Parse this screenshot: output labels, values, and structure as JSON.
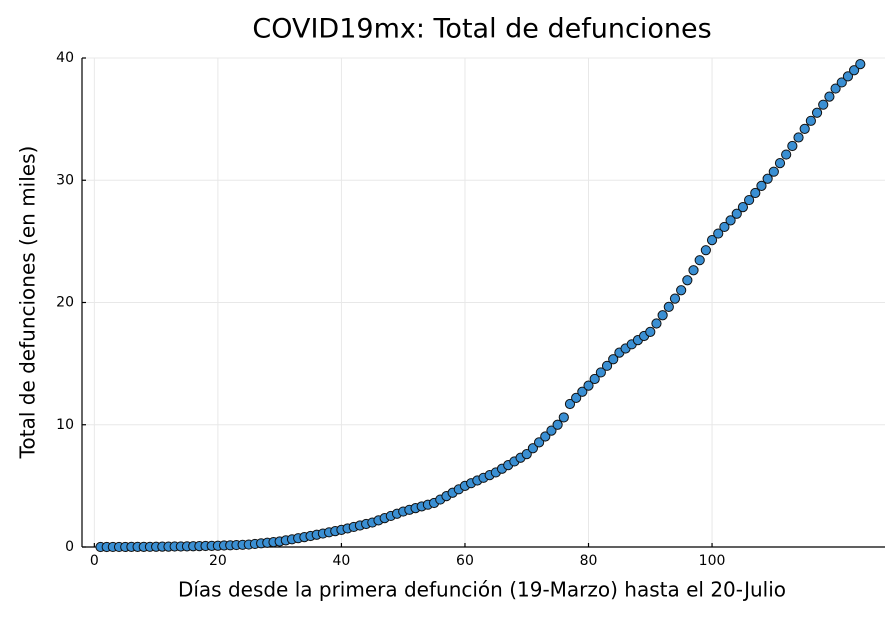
{
  "chart_data": {
    "type": "scatter",
    "title": "COVID19mx: Total de defunciones",
    "xlabel": "Días desde la primera defunción (19-Marzo) hasta el 20-Julio",
    "ylabel": "Total de defunciones (en miles)",
    "color": "#3a8fd3",
    "grid": true,
    "xlim": [
      -2,
      128
    ],
    "ylim": [
      0,
      40
    ],
    "xticks": [
      0,
      20,
      40,
      60,
      80,
      100
    ],
    "yticks": [
      0,
      10,
      20,
      30,
      40
    ],
    "x": [
      1,
      2,
      3,
      4,
      5,
      6,
      7,
      8,
      9,
      10,
      11,
      12,
      13,
      14,
      15,
      16,
      17,
      18,
      19,
      20,
      21,
      22,
      23,
      24,
      25,
      26,
      27,
      28,
      29,
      30,
      31,
      32,
      33,
      34,
      35,
      36,
      37,
      38,
      39,
      40,
      41,
      42,
      43,
      44,
      45,
      46,
      47,
      48,
      49,
      50,
      51,
      52,
      53,
      54,
      55,
      56,
      57,
      58,
      59,
      60,
      61,
      62,
      63,
      64,
      65,
      66,
      67,
      68,
      69,
      70,
      71,
      72,
      73,
      74,
      75,
      76,
      77,
      78,
      79,
      80,
      81,
      82,
      83,
      84,
      85,
      86,
      87,
      88,
      89,
      90,
      91,
      92,
      93,
      94,
      95,
      96,
      97,
      98,
      99,
      100,
      101,
      102,
      103,
      104,
      105,
      106,
      107,
      108,
      109,
      110,
      111,
      112,
      113,
      114,
      115,
      116,
      117,
      118,
      119,
      120,
      121,
      122,
      123,
      124
    ],
    "values": [
      0.002,
      0.003,
      0.004,
      0.004,
      0.005,
      0.008,
      0.01,
      0.013,
      0.016,
      0.02,
      0.03,
      0.03,
      0.04,
      0.04,
      0.05,
      0.06,
      0.07,
      0.08,
      0.09,
      0.1,
      0.12,
      0.14,
      0.16,
      0.18,
      0.2,
      0.25,
      0.3,
      0.35,
      0.4,
      0.45,
      0.54,
      0.63,
      0.72,
      0.81,
      0.9,
      1.0,
      1.1,
      1.2,
      1.3,
      1.4,
      1.52,
      1.64,
      1.76,
      1.88,
      2.0,
      2.18,
      2.36,
      2.54,
      2.72,
      2.9,
      3.04,
      3.18,
      3.32,
      3.46,
      3.6,
      3.88,
      4.16,
      4.44,
      4.72,
      5.0,
      5.22,
      5.44,
      5.66,
      5.88,
      6.1,
      6.4,
      6.7,
      7.0,
      7.3,
      7.6,
      8.08,
      8.56,
      9.04,
      9.52,
      10.0,
      10.6,
      11.7,
      12.2,
      12.7,
      13.2,
      13.74,
      14.28,
      14.82,
      15.36,
      15.9,
      16.24,
      16.58,
      16.92,
      17.26,
      17.6,
      18.28,
      18.96,
      19.64,
      20.32,
      21.0,
      21.82,
      22.64,
      23.46,
      24.28,
      25.1,
      25.64,
      26.18,
      26.72,
      27.26,
      27.8,
      28.38,
      28.96,
      29.54,
      30.12,
      30.7,
      31.4,
      32.1,
      32.8,
      33.5,
      34.2,
      34.86,
      35.52,
      36.18,
      36.84,
      37.5,
      38.0,
      38.5,
      39.0,
      39.5
    ]
  }
}
